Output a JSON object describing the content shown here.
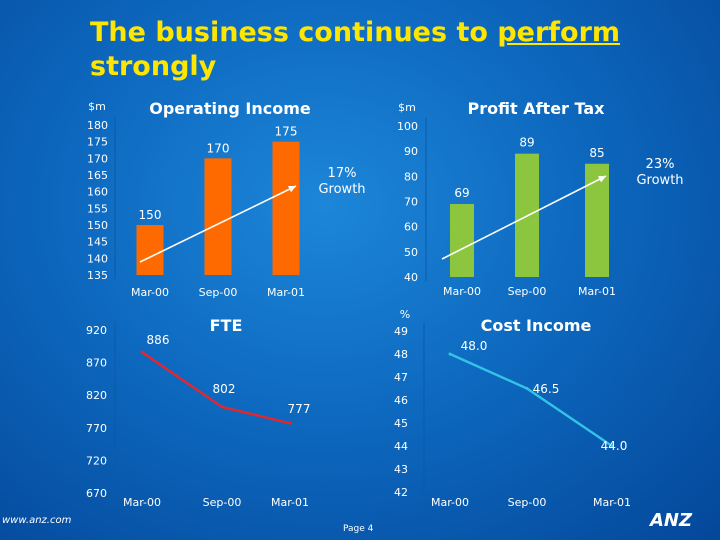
{
  "slide": {
    "title_part1": "The business continues to ",
    "title_underlined": "perform",
    "title_part2": "strongly",
    "footer_url": "www.anz.com",
    "page": "Page 4",
    "logo_text": "ANZ"
  },
  "colors": {
    "title": "#ffe600",
    "bar_orange": "#ff6a00",
    "bar_green": "#8cc63f",
    "fte_line": "#e8262a",
    "cost_line": "#33c3e6",
    "trend": "#ffffff"
  },
  "chart_data": [
    {
      "id": "operating",
      "type": "bar",
      "title": "Operating Income",
      "unit_label": "$m",
      "categories": [
        "Mar-00",
        "Sep-00",
        "Mar-01"
      ],
      "values": [
        150,
        170,
        175
      ],
      "value_labels": [
        "150",
        "170",
        "175"
      ],
      "ylim": [
        135,
        180
      ],
      "yticks": [
        "180",
        "175",
        "170",
        "165",
        "160",
        "155",
        "150",
        "145",
        "140",
        "135"
      ],
      "annotation": [
        "17%",
        "Growth"
      ]
    },
    {
      "id": "profit",
      "type": "bar",
      "title": "Profit After Tax",
      "unit_label": "$m",
      "categories": [
        "Mar-00",
        "Sep-00",
        "Mar-01"
      ],
      "values": [
        69,
        89,
        85
      ],
      "value_labels": [
        "69",
        "89",
        "85"
      ],
      "ylim": [
        40,
        100
      ],
      "yticks": [
        "100",
        "90",
        "80",
        "70",
        "60",
        "50",
        "40"
      ],
      "annotation": [
        "23%",
        "Growth"
      ]
    },
    {
      "id": "fte",
      "type": "line",
      "title": "FTE",
      "categories": [
        "Mar-00",
        "Sep-00",
        "Mar-01"
      ],
      "values": [
        886,
        802,
        777
      ],
      "value_labels": [
        "886",
        "802",
        "777"
      ],
      "ylim": [
        670,
        920
      ],
      "yticks": [
        "920",
        "870",
        "820",
        "770",
        "720",
        "670"
      ]
    },
    {
      "id": "cost",
      "type": "line",
      "title": "Cost Income",
      "unit_label": "%",
      "categories": [
        "Mar-00",
        "Sep-00",
        "Mar-01"
      ],
      "values": [
        48.0,
        46.5,
        44.0
      ],
      "value_labels": [
        "48.0",
        "46.5",
        "44.0"
      ],
      "ylim": [
        42,
        49
      ],
      "yticks": [
        "49",
        "48",
        "47",
        "46",
        "45",
        "44",
        "43",
        "42"
      ]
    }
  ]
}
